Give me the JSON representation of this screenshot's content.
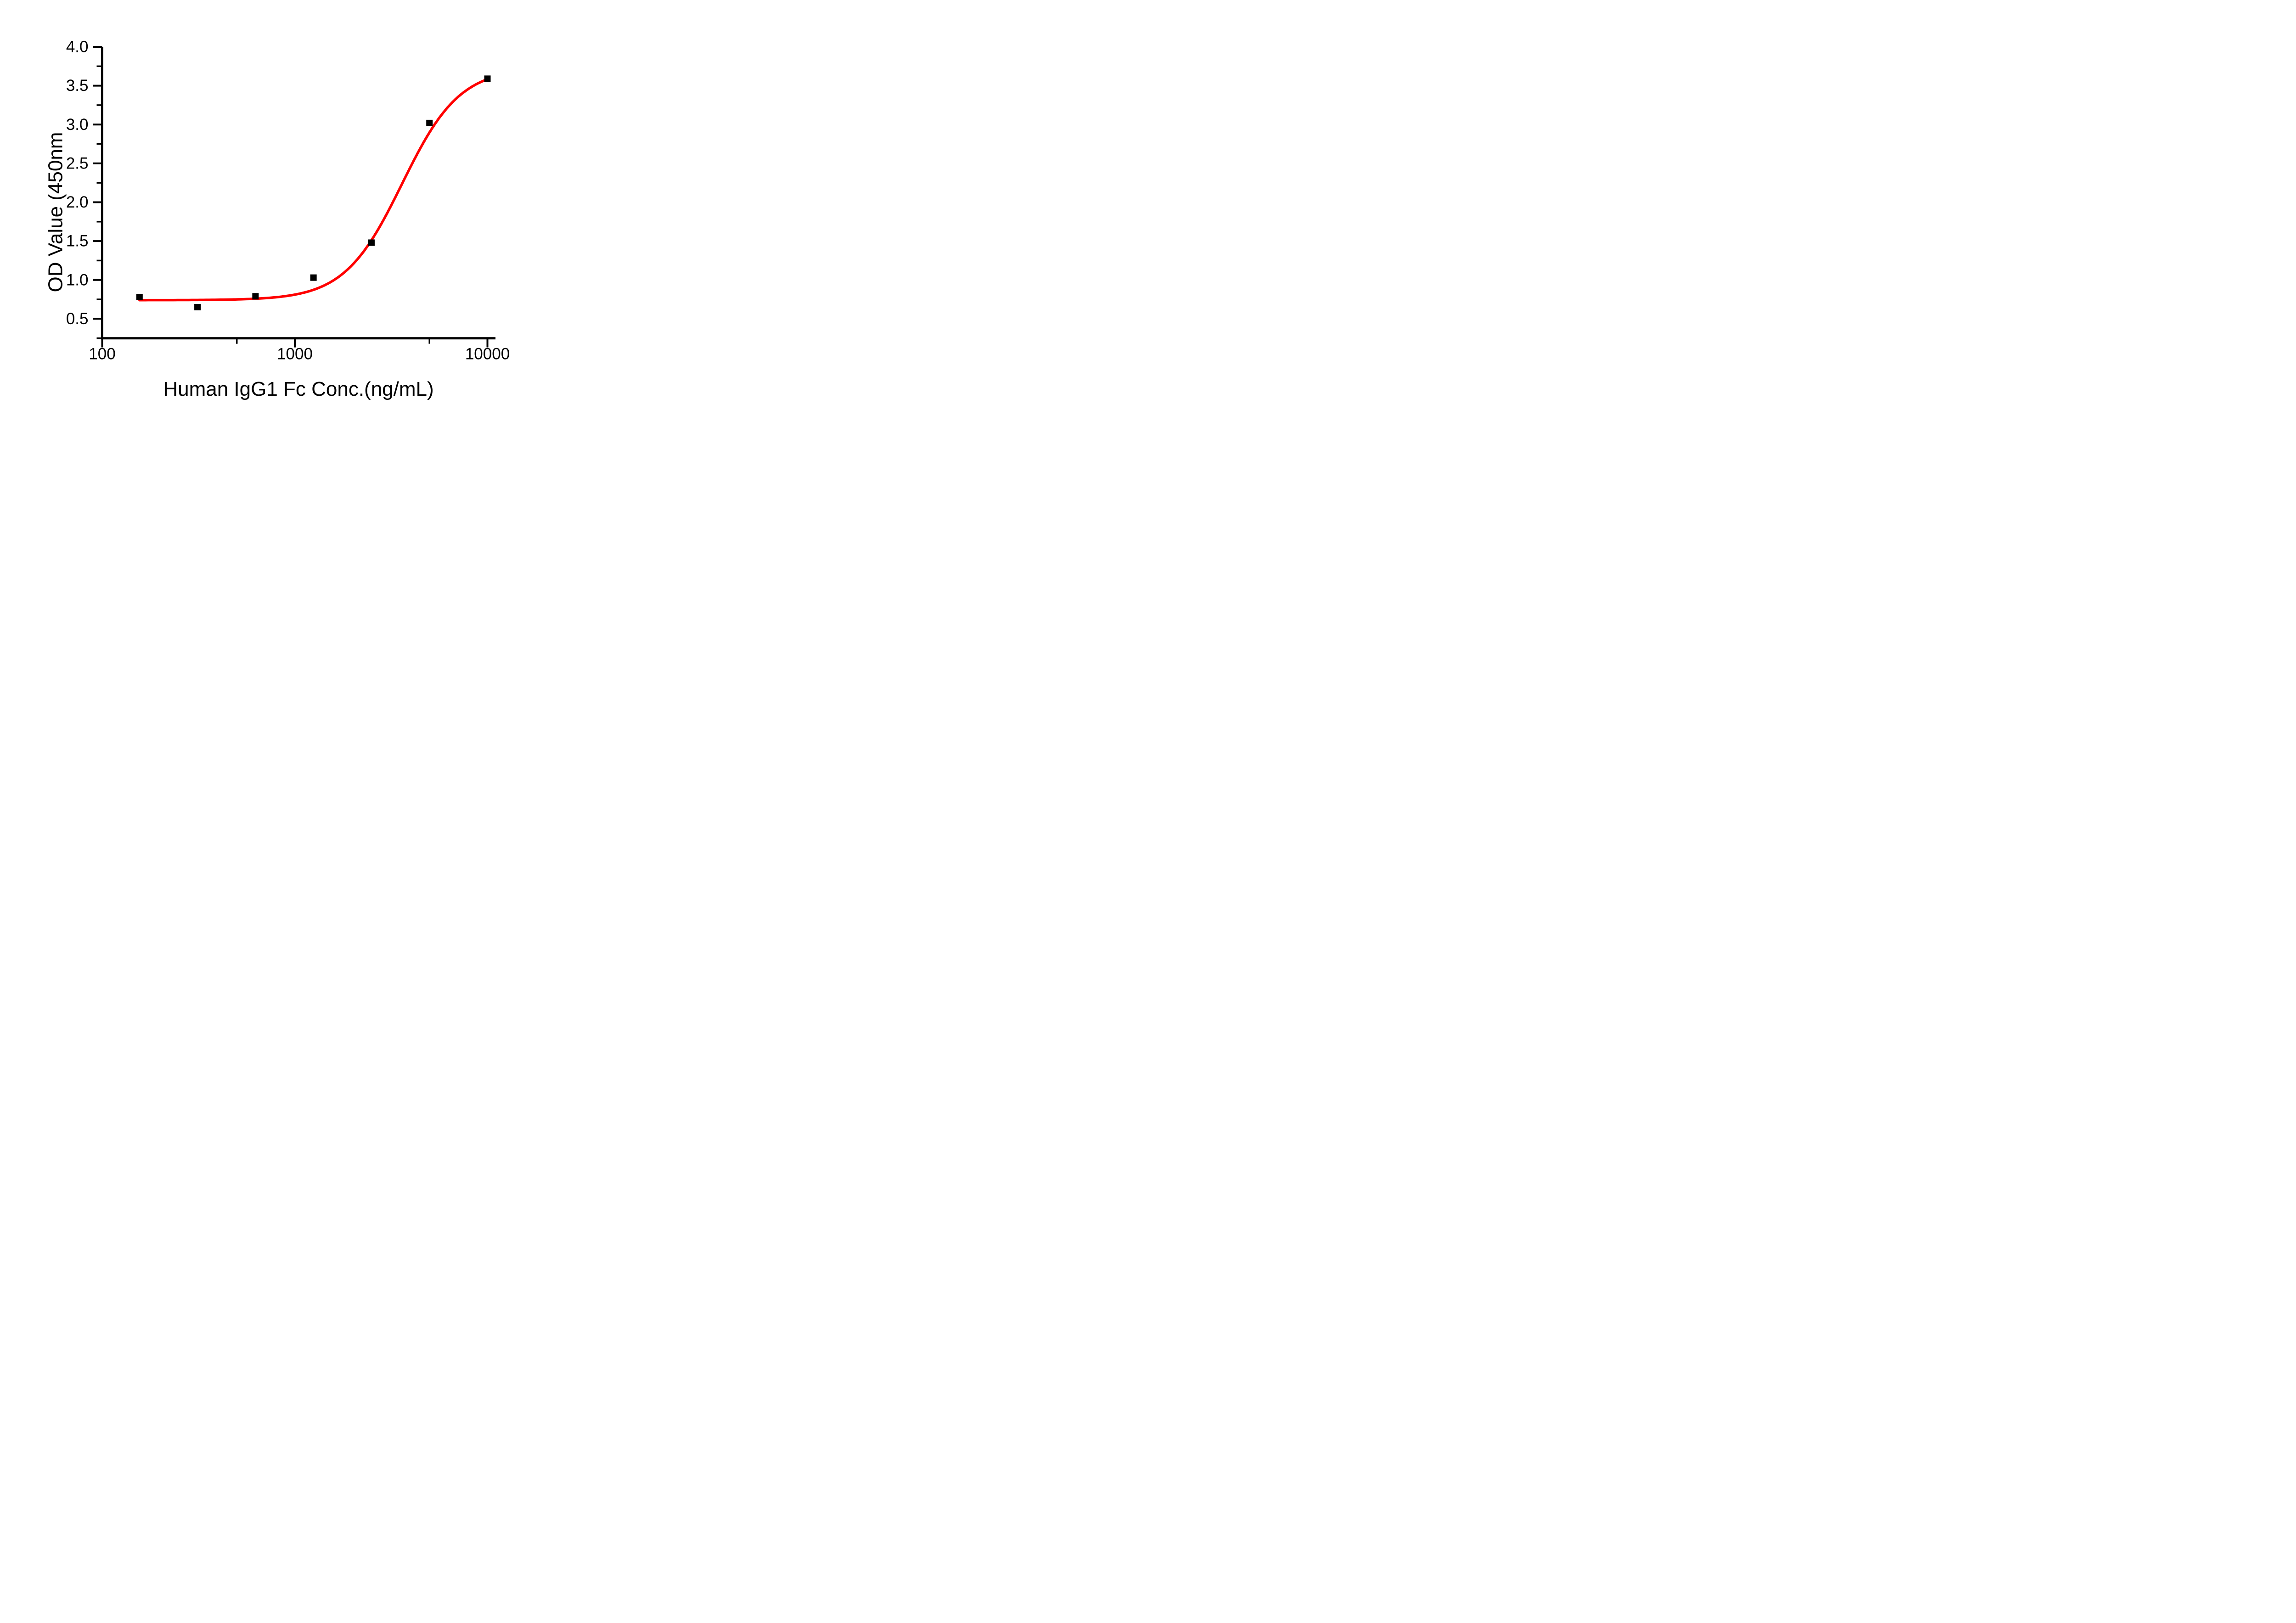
{
  "figure": {
    "background_color": "#ffffff",
    "plot_type_note": "ELISA binding dose-response curve"
  },
  "chart_data": {
    "type": "scatter",
    "title": "",
    "xlabel": "Human IgG1 Fc Conc.(ng/mL)",
    "ylabel": "OD Value (450nm",
    "x_scale": "log10",
    "y_scale": "linear",
    "xlim": [
      100,
      11000
    ],
    "ylim": [
      0.25,
      4.0
    ],
    "x_major_ticks": [
      100,
      1000,
      10000
    ],
    "x_major_tick_labels": [
      "100",
      "1000",
      "10000"
    ],
    "x_minor_ticks": [
      500,
      5000
    ],
    "y_major_ticks": [
      0.5,
      1.0,
      1.5,
      2.0,
      2.5,
      3.0,
      3.5,
      4.0
    ],
    "y_major_tick_labels": [
      "0.5",
      "1.0",
      "1.5",
      "2.0",
      "2.5",
      "3.0",
      "3.5",
      "4.0"
    ],
    "y_minor_ticks": [
      0.25,
      0.75,
      1.25,
      1.75,
      2.25,
      2.75,
      3.25,
      3.75
    ],
    "grid": false,
    "legend": null,
    "series": [
      {
        "marker": "square",
        "marker_color": "#000000",
        "x": [
          156.25,
          312.5,
          625,
          1250,
          2500,
          5000,
          10000
        ],
        "y": [
          0.78,
          0.65,
          0.79,
          1.03,
          1.48,
          3.02,
          3.59
        ]
      }
    ],
    "fit_curve": {
      "model": "4PL",
      "color": "#ff0000",
      "bottom": 0.74,
      "top": 3.73,
      "ec50": 3600,
      "hill": 2.9,
      "x_range": [
        156.25,
        10000
      ]
    }
  },
  "style": {
    "axis_color": "#000000",
    "tick_color": "#000000",
    "marker_color": "#000000",
    "curve_color": "#ff0000",
    "background": "#ffffff"
  }
}
